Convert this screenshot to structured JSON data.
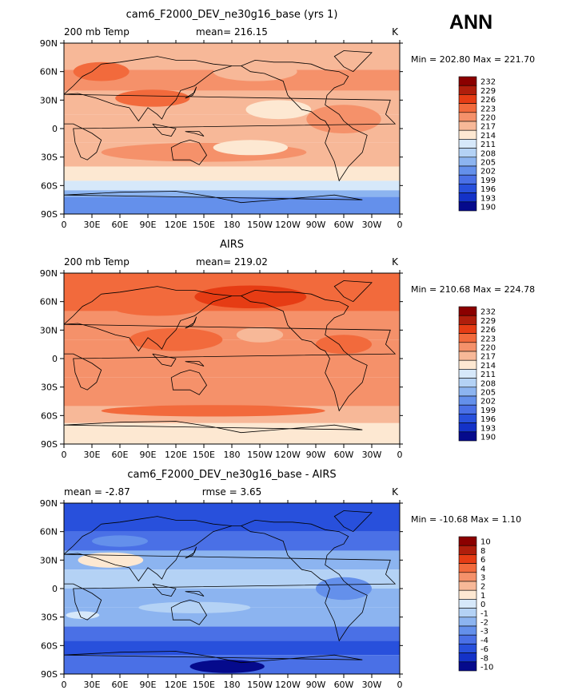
{
  "season": "ANN",
  "chart_data": [
    {
      "type": "heatmap",
      "title": "cam6_F2000_DEV_ne30g16_base (yrs 1)",
      "left_label": "200 mb Temp",
      "center_label": "mean= 216.15",
      "right_label": "K",
      "minmax_label": "Min = 202.80 Max = 221.70",
      "min": 202.8,
      "max": 221.7,
      "mean": 216.15,
      "x_ticks": [
        "0",
        "30E",
        "60E",
        "90E",
        "120E",
        "150E",
        "180",
        "150W",
        "120W",
        "90W",
        "60W",
        "30W",
        "0"
      ],
      "y_ticks": [
        "90N",
        "60N",
        "30N",
        "0",
        "30S",
        "60S",
        "90S"
      ],
      "xlim": [
        0,
        360
      ],
      "ylim": [
        -90,
        90
      ],
      "levels": [
        "232",
        "229",
        "226",
        "223",
        "220",
        "217",
        "214",
        "211",
        "208",
        "205",
        "202",
        "199",
        "196",
        "193",
        "190"
      ],
      "bands": [
        {
          "lat": [
            62,
            90
          ],
          "level": "217"
        },
        {
          "lat": [
            40,
            62
          ],
          "level": "220"
        },
        {
          "lat": [
            15,
            40
          ],
          "level": "217"
        },
        {
          "lat": [
            -15,
            15
          ],
          "level": "217"
        },
        {
          "lat": [
            -40,
            -15
          ],
          "level": "217"
        },
        {
          "lat": [
            -55,
            -40
          ],
          "level": "214"
        },
        {
          "lat": [
            -65,
            -55
          ],
          "level": "211"
        },
        {
          "lat": [
            -72,
            -65
          ],
          "level": "205"
        },
        {
          "lat": [
            -90,
            -72
          ],
          "level": "202"
        }
      ],
      "blobs": [
        {
          "lon": 95,
          "lat": 32,
          "rx": 40,
          "ry": 9,
          "level": "223"
        },
        {
          "lon": 205,
          "lat": 60,
          "rx": 45,
          "ry": 10,
          "level": "217"
        },
        {
          "lon": 40,
          "lat": 60,
          "rx": 30,
          "ry": 10,
          "level": "223"
        },
        {
          "lon": 150,
          "lat": -25,
          "rx": 110,
          "ry": 10,
          "level": "220"
        },
        {
          "lon": 300,
          "lat": 10,
          "rx": 40,
          "ry": 15,
          "level": "220"
        },
        {
          "lon": 230,
          "lat": 20,
          "rx": 35,
          "ry": 10,
          "level": "214"
        },
        {
          "lon": 200,
          "lat": -20,
          "rx": 40,
          "ry": 8,
          "level": "214"
        }
      ]
    },
    {
      "type": "heatmap",
      "title": "AIRS",
      "left_label": "200 mb Temp",
      "center_label": "mean= 219.02",
      "right_label": "K",
      "minmax_label": "Min = 210.68 Max = 224.78",
      "min": 210.68,
      "max": 224.78,
      "mean": 219.02,
      "x_ticks": [
        "0",
        "30E",
        "60E",
        "90E",
        "120E",
        "150E",
        "180",
        "150W",
        "120W",
        "90W",
        "60W",
        "30W",
        "0"
      ],
      "y_ticks": [
        "90N",
        "60N",
        "30N",
        "0",
        "30S",
        "60S",
        "90S"
      ],
      "xlim": [
        0,
        360
      ],
      "ylim": [
        -90,
        90
      ],
      "levels": [
        "232",
        "229",
        "226",
        "223",
        "220",
        "217",
        "214",
        "211",
        "208",
        "205",
        "202",
        "199",
        "196",
        "193",
        "190"
      ],
      "bands": [
        {
          "lat": [
            50,
            90
          ],
          "level": "223"
        },
        {
          "lat": [
            20,
            50
          ],
          "level": "220"
        },
        {
          "lat": [
            -20,
            20
          ],
          "level": "220"
        },
        {
          "lat": [
            -50,
            -20
          ],
          "level": "220"
        },
        {
          "lat": [
            -68,
            -50
          ],
          "level": "217"
        },
        {
          "lat": [
            -90,
            -68
          ],
          "level": "214"
        }
      ],
      "blobs": [
        {
          "lon": 200,
          "lat": 65,
          "rx": 60,
          "ry": 12,
          "level": "226"
        },
        {
          "lon": 100,
          "lat": 55,
          "rx": 50,
          "ry": 10,
          "level": "223"
        },
        {
          "lon": 160,
          "lat": -55,
          "rx": 120,
          "ry": 6,
          "level": "223"
        },
        {
          "lon": 120,
          "lat": 20,
          "rx": 50,
          "ry": 12,
          "level": "223"
        },
        {
          "lon": 300,
          "lat": 15,
          "rx": 30,
          "ry": 10,
          "level": "223"
        },
        {
          "lon": 210,
          "lat": 25,
          "rx": 25,
          "ry": 8,
          "level": "217"
        }
      ]
    },
    {
      "type": "heatmap",
      "title": "cam6_F2000_DEV_ne30g16_base - AIRS",
      "left_label": "mean = -2.87",
      "center_label": "rmse = 3.65",
      "right_label": "K",
      "minmax_label": "Min = -10.68 Max = 1.10",
      "min": -10.68,
      "max": 1.1,
      "mean": -2.87,
      "rmse": 3.65,
      "x_ticks": [
        "0",
        "30E",
        "60E",
        "90E",
        "120E",
        "150E",
        "180",
        "150W",
        "120W",
        "90W",
        "60W",
        "30W",
        "0"
      ],
      "y_ticks": [
        "90N",
        "60N",
        "30N",
        "0",
        "30S",
        "60S",
        "90S"
      ],
      "xlim": [
        0,
        360
      ],
      "ylim": [
        -90,
        90
      ],
      "levels": [
        "10",
        "8",
        "6",
        "4",
        "3",
        "2",
        "1",
        "0",
        "-1",
        "-2",
        "-3",
        "-4",
        "-6",
        "-8",
        "-10"
      ],
      "bands": [
        {
          "lat": [
            60,
            90
          ],
          "level": "-6"
        },
        {
          "lat": [
            40,
            60
          ],
          "level": "-4"
        },
        {
          "lat": [
            20,
            40
          ],
          "level": "-2"
        },
        {
          "lat": [
            0,
            20
          ],
          "level": "-1"
        },
        {
          "lat": [
            -20,
            0
          ],
          "level": "-2"
        },
        {
          "lat": [
            -40,
            -20
          ],
          "level": "-2"
        },
        {
          "lat": [
            -55,
            -40
          ],
          "level": "-4"
        },
        {
          "lat": [
            -70,
            -55
          ],
          "level": "-6"
        },
        {
          "lat": [
            -90,
            -70
          ],
          "level": "-4"
        }
      ],
      "blobs": [
        {
          "lon": 50,
          "lat": 30,
          "rx": 35,
          "ry": 8,
          "level": "1"
        },
        {
          "lon": 20,
          "lat": -28,
          "rx": 18,
          "ry": 4,
          "level": "0"
        },
        {
          "lon": 140,
          "lat": -20,
          "rx": 60,
          "ry": 6,
          "level": "-1"
        },
        {
          "lon": 175,
          "lat": -82,
          "rx": 40,
          "ry": 7,
          "level": "-10"
        },
        {
          "lon": 60,
          "lat": 50,
          "rx": 30,
          "ry": 6,
          "level": "-3"
        },
        {
          "lon": 300,
          "lat": 0,
          "rx": 30,
          "ry": 12,
          "level": "-3"
        }
      ]
    }
  ],
  "palette": {
    "232": "#8b0000",
    "229": "#b01e0c",
    "226": "#e63c14",
    "223": "#f26a3c",
    "220": "#f5916a",
    "217": "#f7b898",
    "214": "#fde8d2",
    "211": "#d6e8fa",
    "208": "#b4d2f5",
    "205": "#8cb4f0",
    "202": "#6490eb",
    "199": "#4a70e6",
    "196": "#2850dc",
    "193": "#1432c8",
    "190": "#050a8c",
    "10": "#8b0000",
    "8": "#b01e0c",
    "6": "#e63c14",
    "4": "#f26a3c",
    "3": "#f5916a",
    "2": "#f7b898",
    "1": "#fde8d2",
    "0": "#d6e8fa",
    "-1": "#b4d2f5",
    "-2": "#8cb4f0",
    "-3": "#6490eb",
    "-4": "#4a70e6",
    "-6": "#2850dc",
    "-8": "#1432c8",
    "-10": "#050a8c"
  }
}
